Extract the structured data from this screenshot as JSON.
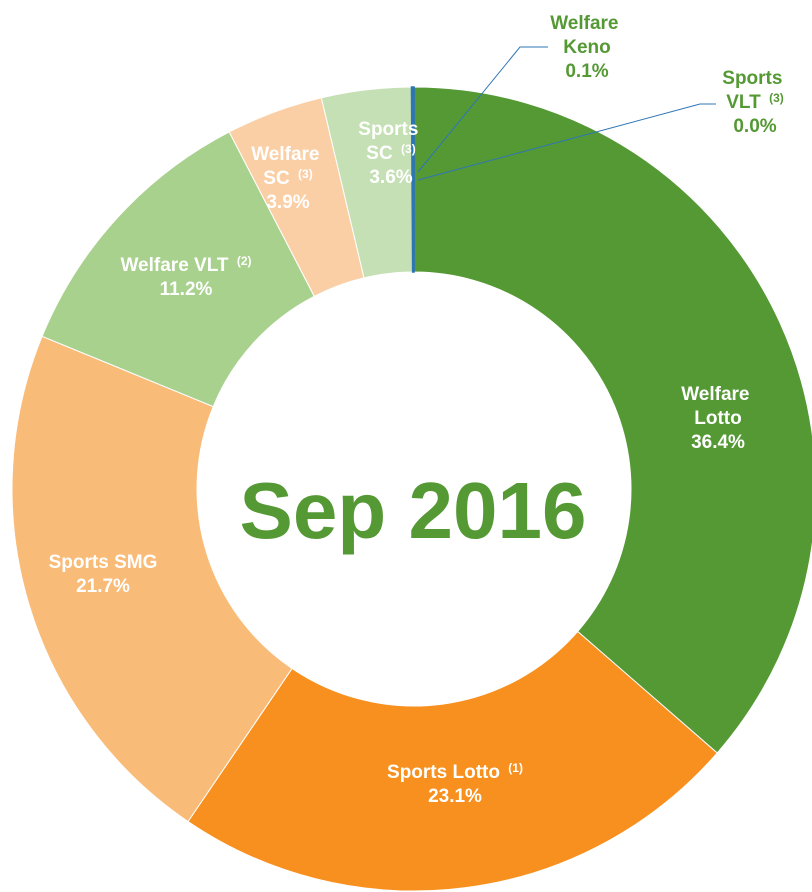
{
  "chart_data": {
    "type": "donut",
    "center_label": "Sep 2016",
    "categories": [
      "Welfare Lotto",
      "Sports Lotto",
      "Sports SMG",
      "Welfare VLT",
      "Welfare SC",
      "Sports SC",
      "Welfare Keno",
      "Sports VLT"
    ],
    "notes": [
      null,
      "(1)",
      null,
      "(2)",
      "(3)",
      "(3)",
      null,
      "(3)"
    ],
    "values": [
      36.4,
      23.1,
      21.7,
      11.2,
      3.9,
      3.6,
      0.1,
      0.0
    ],
    "value_labels": [
      "36.4%",
      "23.1%",
      "21.7%",
      "11.2%",
      "3.9%",
      "3.6%",
      "0.1%",
      "0.0%"
    ],
    "colors": [
      "#559935",
      "#F7901E",
      "#F9BB78",
      "#A9D18E",
      "#FBCFA5",
      "#C5E0B4",
      "#2E75B6",
      "#2E75B6"
    ]
  }
}
